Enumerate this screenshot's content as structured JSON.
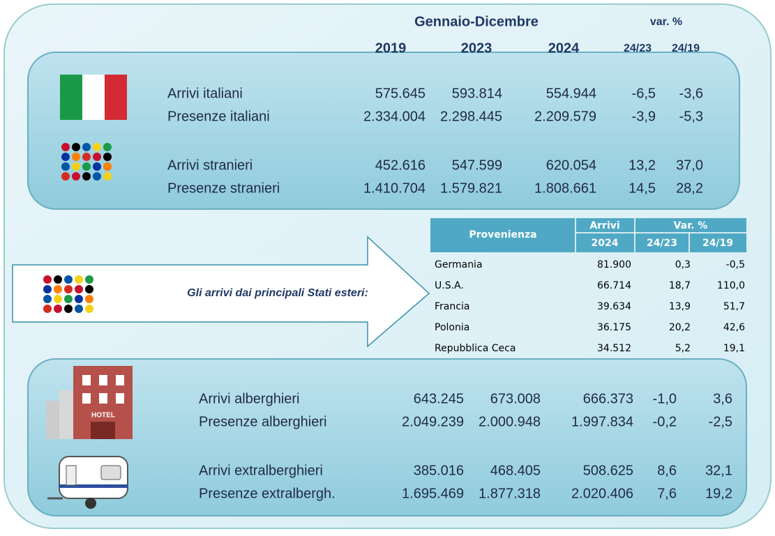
{
  "header": {
    "period": "Gennaio-Dicembre",
    "var": "var. %",
    "years": [
      "2019",
      "2023",
      "2024"
    ],
    "var_cols": [
      "24/23",
      "24/19"
    ]
  },
  "top_rows": [
    {
      "label": "Arrivi italiani",
      "values": [
        "575.645",
        "593.814",
        "554.944",
        "-6,5",
        "-3,6"
      ]
    },
    {
      "label": "Presenze italiani",
      "values": [
        "2.334.004",
        "2.298.445",
        "2.209.579",
        "-3,9",
        "-5,3"
      ]
    },
    {
      "label": "Arrivi stranieri",
      "values": [
        "452.616",
        "547.599",
        "620.054",
        "13,2",
        "37,0"
      ]
    },
    {
      "label": "Presenze stranieri",
      "values": [
        "1.410.704",
        "1.579.821",
        "1.808.661",
        "14,5",
        "28,2"
      ]
    }
  ],
  "arrow_text": "Gli arrivi dai principali Stati esteri:",
  "country_table": {
    "headers": {
      "origin": "Provenienza",
      "arrivals": "Arrivi",
      "var": "Var. %",
      "year": "2024",
      "var_cols": [
        "24/23",
        "24/19"
      ]
    },
    "rows": [
      [
        "Germania",
        "81.900",
        "0,3",
        "-0,5"
      ],
      [
        "U.S.A.",
        "66.714",
        "18,7",
        "110,0"
      ],
      [
        "Francia",
        "39.634",
        "13,9",
        "51,7"
      ],
      [
        "Polonia",
        "36.175",
        "20,2",
        "42,6"
      ],
      [
        "Repubblica Ceca",
        "34.512",
        "5,2",
        "19,1"
      ]
    ]
  },
  "hotel_sign": "HOTEL",
  "bottom_rows": [
    {
      "label": "Arrivi alberghieri",
      "values": [
        "643.245",
        "673.008",
        "666.373",
        "-1,0",
        "3,6"
      ]
    },
    {
      "label": "Presenze alberghieri",
      "values": [
        "2.049.239",
        "2.000.948",
        "1.997.834",
        "-0,2",
        "-2,5"
      ]
    },
    {
      "label": "Arrivi extralberghieri",
      "values": [
        "385.016",
        "468.405",
        "508.625",
        "8,6",
        "32,1"
      ]
    },
    {
      "label": "Presenze extralbergh.",
      "values": [
        "1.695.469",
        "1.877.318",
        "2.020.406",
        "7,6",
        "19,2"
      ]
    }
  ]
}
